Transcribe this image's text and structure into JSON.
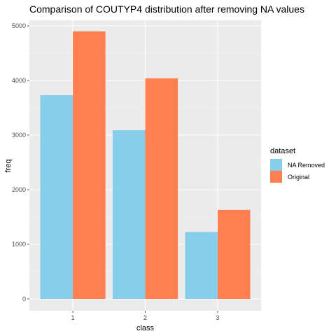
{
  "chart_data": {
    "type": "bar",
    "title": "Comparison of COUTYP4 distribution after removing NA values",
    "xlabel": "class",
    "ylabel": "freq",
    "categories": [
      "1",
      "2",
      "3"
    ],
    "series": [
      {
        "name": "NA Removed",
        "values": [
          3730,
          3090,
          1225
        ],
        "color": "#87CEEB"
      },
      {
        "name": "Original",
        "values": [
          4900,
          4040,
          1630
        ],
        "color": "#FF7F50"
      }
    ],
    "ylim": [
      0,
      5150
    ],
    "yticks": [
      0,
      1000,
      2000,
      3000,
      4000,
      5000
    ],
    "grid": true,
    "legend": {
      "title": "dataset",
      "position": "right"
    }
  }
}
